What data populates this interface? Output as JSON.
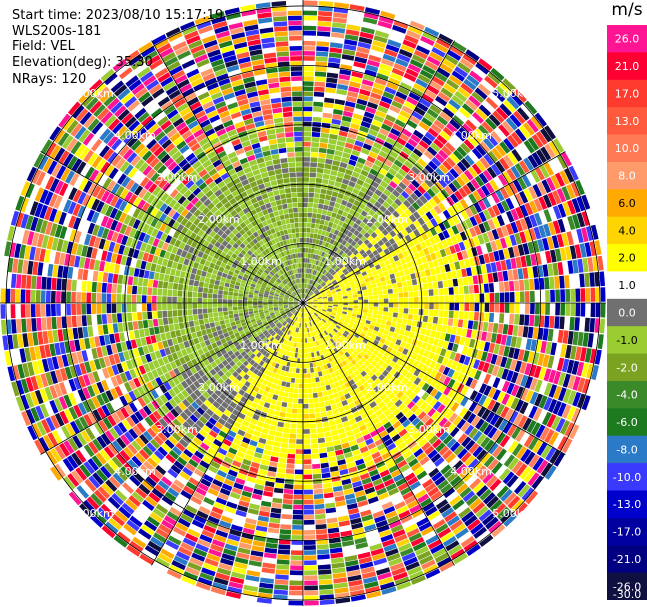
{
  "header": {
    "start_time": "Start time: 2023/08/10 15:17:19",
    "instrument": "WLS200s-181",
    "field": "Field: VEL",
    "elevation": "Elevation(deg): 35.30",
    "nrays": "NRays: 120"
  },
  "chart_data": {
    "type": "heatmap",
    "projection": "ppi-polar",
    "nrays": 120,
    "range_rings_km": [
      1.0,
      2.0,
      3.0,
      4.0,
      5.0
    ],
    "range_ring_labels": [
      "1.00km",
      "2.00km",
      "3.00km",
      "4.00km",
      "5.00km"
    ],
    "max_range_km": 5.1,
    "spokes": 6,
    "colorbar": {
      "unit": "m/s",
      "ticks": [
        "26.0",
        "21.0",
        "17.0",
        "13.0",
        "10.0",
        "8.0",
        "6.0",
        "4.0",
        "2.0",
        "1.0",
        "0.0",
        "-1.0",
        "-2.0",
        "-4.0",
        "-6.0",
        "-8.0",
        "-10.0",
        "-13.0",
        "-17.0",
        "-21.0",
        "-26.0",
        "-30.0"
      ],
      "colors": [
        "#ff1493",
        "#ff0033",
        "#ff3a2f",
        "#ff5a3c",
        "#ff7a55",
        "#ff9a6a",
        "#ffaa00",
        "#ffd400",
        "#ffff00",
        "#ffffff",
        "#707070",
        "#9acd32",
        "#7ba321",
        "#3a8a2a",
        "#1e7a1e",
        "#2a7ac8",
        "#3a3aff",
        "#0000cd",
        "#0000a0",
        "#000080",
        "#101040"
      ]
    },
    "pattern": {
      "center_toward": "SE",
      "away_toward": "NW",
      "inner_radius_km": 2.6
    }
  }
}
